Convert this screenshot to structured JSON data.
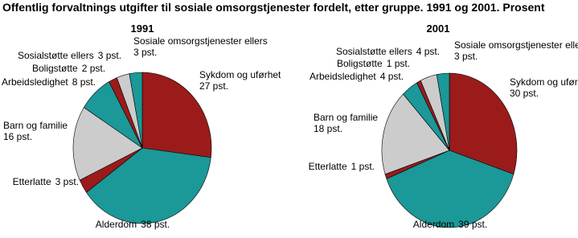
{
  "title": "Offentlig forvaltnings utgifter til sosiale omsorgstjenester fordelt, etter gruppe. 1991 og 2001. Prosent",
  "chart_data": [
    {
      "type": "pie",
      "title": "1991",
      "categories": [
        "Sykdom og uførhet",
        "Alderdom",
        "Etterlatte",
        "Barn og familie",
        "Arbeidsledighet",
        "Boligstøtte",
        "Sosialstøtte ellers",
        "Sosiale omsorgstjenester ellers"
      ],
      "values": [
        27,
        38,
        3,
        16,
        8,
        2,
        3,
        3
      ],
      "value_labels": [
        "27 pst.",
        "38 pst.",
        "3 pst.",
        "16 pst.",
        "8 pst.",
        "2 pst.",
        "3 pst.",
        "3 pst."
      ],
      "colors": [
        "#9b1b1b",
        "#1b9898",
        "#9b1b1b",
        "#cccccc",
        "#1b9898",
        "#9b1b1b",
        "#cccccc",
        "#1b9898"
      ]
    },
    {
      "type": "pie",
      "title": "2001",
      "categories": [
        "Sykdom og uførhet",
        "Alderdom",
        "Etterlatte",
        "Barn og familie",
        "Arbeidsledighet",
        "Boligstøtte",
        "Sosialstøtte ellers",
        "Sosiale omsorgstjenester ellers"
      ],
      "values": [
        30,
        39,
        1,
        18,
        4,
        1,
        4,
        3
      ],
      "value_labels": [
        "30 pst.",
        "39 pst.",
        "1 pst.",
        "18 pst.",
        "4 pst.",
        "1 pst.",
        "4 pst.",
        "3 pst."
      ],
      "colors": [
        "#9b1b1b",
        "#1b9898",
        "#9b1b1b",
        "#cccccc",
        "#1b9898",
        "#9b1b1b",
        "#cccccc",
        "#1b9898"
      ]
    }
  ]
}
